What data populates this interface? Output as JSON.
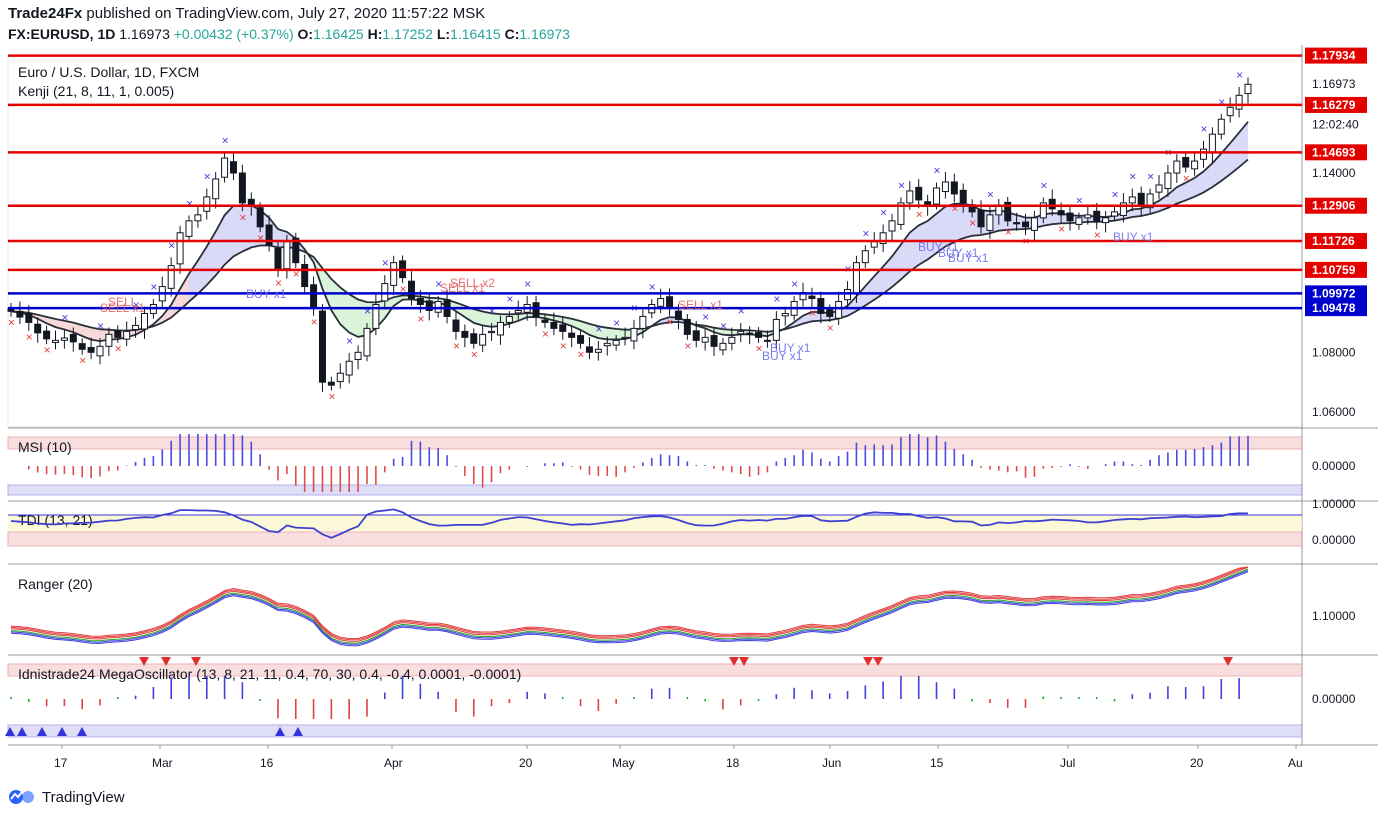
{
  "header": {
    "publisher": "Trade24Fx",
    "published_text": "published on TradingView.com, July 27, 2020 11:57:22 MSK",
    "symbol": "FX:EURUSD, 1D",
    "last": "1.16973",
    "change": "+0.00432 (+0.37%)",
    "o_label": "O:",
    "o": "1.16425",
    "h_label": "H:",
    "h": "1.17252",
    "l_label": "L:",
    "l": "1.16415",
    "c_label": "C:",
    "c": "1.16973"
  },
  "brand": {
    "name": "TradingView"
  },
  "colors": {
    "up": "#131722",
    "down": "#131722",
    "level_red": "#e50000",
    "level_blue": "#0000cc",
    "band_fill": "#c9c9f5",
    "band_fill_red": "#f5c9c9",
    "band_fill_green": "#c9f0c9",
    "osc_blue": "#3333dd",
    "osc_red": "#e02020",
    "osc_green": "#22aa22"
  },
  "chart_data": {
    "type": "candlestick",
    "title": "Euro / U.S. Dollar, 1D, FXCM",
    "indicator_label": "Kenji (21, 8, 11, 1, 0.005)",
    "price_axis": {
      "ticks": [
        {
          "value": 1.06,
          "label": "1.06000"
        },
        {
          "value": 1.08,
          "label": "1.08000"
        },
        {
          "value": 1.14,
          "label": "1.14000"
        },
        {
          "value": 1.16973,
          "label": "1.16973"
        }
      ],
      "ylim": [
        1.055,
        1.1795
      ],
      "countdown": "12:02:40"
    },
    "time_axis": [
      "17",
      "Mar",
      "16",
      "Apr",
      "20",
      "May",
      "18",
      "Jun",
      "15",
      "Jul",
      "20",
      "Au"
    ],
    "levels": [
      {
        "value": 1.1793,
        "label": "1.17934",
        "color": "red"
      },
      {
        "value": 1.16279,
        "label": "1.16279",
        "color": "red"
      },
      {
        "value": 1.14693,
        "label": "1.14693",
        "color": "red"
      },
      {
        "value": 1.12906,
        "label": "1.12906",
        "color": "red"
      },
      {
        "value": 1.11726,
        "label": "1.11726",
        "color": "red"
      },
      {
        "value": 1.10759,
        "label": "1.10759",
        "color": "red"
      },
      {
        "value": 1.09972,
        "label": "1.09972",
        "color": "blue"
      },
      {
        "value": 1.09478,
        "label": "1.09478",
        "color": "blue"
      }
    ],
    "close": [
      1.0937,
      1.0918,
      1.09,
      1.0865,
      1.0845,
      1.084,
      1.0848,
      1.0835,
      1.081,
      1.08,
      1.082,
      1.086,
      1.085,
      1.087,
      1.089,
      1.093,
      1.096,
      1.102,
      1.109,
      1.12,
      1.124,
      1.126,
      1.132,
      1.138,
      1.145,
      1.14,
      1.13,
      1.129,
      1.122,
      1.116,
      1.108,
      1.117,
      1.11,
      1.102,
      1.095,
      1.07,
      1.069,
      1.073,
      1.077,
      1.08,
      1.088,
      1.096,
      1.103,
      1.11,
      1.105,
      1.098,
      1.096,
      1.094,
      1.097,
      1.092,
      1.087,
      1.085,
      1.083,
      1.086,
      1.087,
      1.09,
      1.092,
      1.094,
      1.096,
      1.092,
      1.09,
      1.088,
      1.087,
      1.085,
      1.083,
      1.08,
      1.081,
      1.083,
      1.084,
      1.085,
      1.088,
      1.092,
      1.096,
      1.098,
      1.095,
      1.091,
      1.086,
      1.084,
      1.085,
      1.082,
      1.083,
      1.085,
      1.087,
      1.086,
      1.085,
      1.084,
      1.091,
      1.093,
      1.097,
      1.1,
      1.098,
      1.093,
      1.092,
      1.097,
      1.101,
      1.11,
      1.114,
      1.117,
      1.12,
      1.124,
      1.13,
      1.134,
      1.131,
      1.129,
      1.135,
      1.137,
      1.133,
      1.13,
      1.127,
      1.122,
      1.126,
      1.129,
      1.124,
      1.123,
      1.122,
      1.125,
      1.13,
      1.128,
      1.126,
      1.124,
      1.125,
      1.126,
      1.124,
      1.125,
      1.127,
      1.13,
      1.132,
      1.129,
      1.133,
      1.136,
      1.14,
      1.144,
      1.142,
      1.144,
      1.148,
      1.153,
      1.158,
      1.162,
      1.166,
      1.1697
    ],
    "legend": [
      "Kenji (21, 8, 11, 1, 0.005)",
      "MSI (10)",
      "TDI (13, 21)",
      "Ranger (20)",
      "Idnistrade24 MegaOscillator (13, 8, 21, 11, 0.4, 70, 30, 0.4, -0.4, 0.0001, -0.0001)"
    ],
    "signals": [
      {
        "text": "SELL",
        "color": "red"
      },
      {
        "text": "SELL x1",
        "color": "red"
      },
      {
        "text": "BUY x1",
        "color": "blue"
      },
      {
        "text": "SELL x2",
        "color": "red"
      },
      {
        "text": "SELL x1",
        "color": "red"
      },
      {
        "text": "SELL x1",
        "color": "red"
      },
      {
        "text": "BUY x1",
        "color": "blue"
      },
      {
        "text": "BUY x1",
        "color": "blue"
      },
      {
        "text": "BUY x1",
        "color": "blue"
      },
      {
        "text": "BUY x1",
        "color": "blue"
      },
      {
        "text": "BUY x1",
        "color": "blue"
      },
      {
        "text": "BUY x1",
        "color": "blue"
      }
    ],
    "panes": {
      "msi": {
        "title": "MSI (10)",
        "zero_label": "0.00000"
      },
      "tdi": {
        "title": "TDI (13, 21)",
        "top_label": "1.00000",
        "zero_label": "0.00000"
      },
      "ranger": {
        "title": "Ranger (20)",
        "tick_label": "1.10000"
      },
      "mega": {
        "title": "Idnistrade24 MegaOscillator (13, 8, 21, 11, 0.4, 70, 30, 0.4, -0.4, 0.0001, -0.0001)",
        "zero_label": "0.00000"
      }
    }
  }
}
